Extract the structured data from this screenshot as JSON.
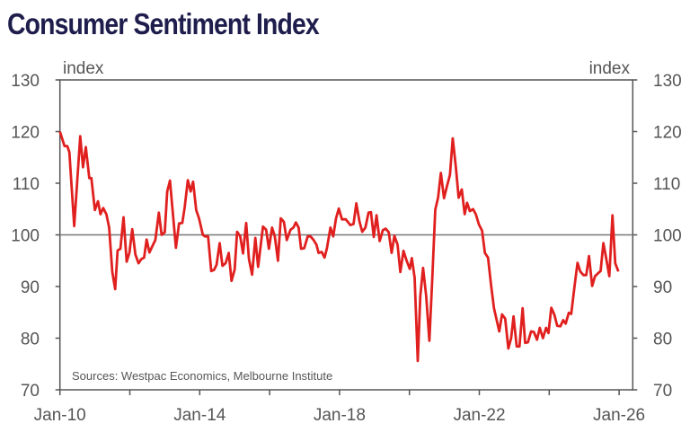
{
  "chart_data": {
    "type": "line",
    "title": "Consumer Sentiment Index",
    "ylabel_left": "index",
    "ylabel_right": "index",
    "source": "Sources: Westpac Economics, Melbourne Institute",
    "ylim": [
      70,
      130
    ],
    "yticks": [
      70,
      80,
      90,
      100,
      110,
      120,
      130
    ],
    "xlim": [
      2010.0,
      2026.42
    ],
    "xticks": [
      2010,
      2012,
      2014,
      2016,
      2018,
      2020,
      2022,
      2024,
      2026
    ],
    "xtick_labels": [
      {
        "x": 2010,
        "label": "Jan-10"
      },
      {
        "x": 2014,
        "label": "Jan-14"
      },
      {
        "x": 2018,
        "label": "Jan-18"
      },
      {
        "x": 2022,
        "label": "Jan-22"
      },
      {
        "x": 2026,
        "label": "Jan-26"
      }
    ],
    "reference_line": 100,
    "grid": false,
    "colors": {
      "series": "#e0201f",
      "title": "#1e1d4c",
      "axis": "#555555"
    },
    "series": [
      {
        "name": "Consumer Sentiment Index",
        "points": [
          [
            2010.0,
            120
          ],
          [
            2010.13,
            117.2
          ],
          [
            2010.21,
            117.2
          ],
          [
            2010.27,
            116.0
          ],
          [
            2010.41,
            101.7
          ],
          [
            2010.58,
            119.1
          ],
          [
            2010.66,
            113.1
          ],
          [
            2010.74,
            117.0
          ],
          [
            2010.84,
            111.0
          ],
          [
            2010.9,
            111.0
          ],
          [
            2011.0,
            104.8
          ],
          [
            2011.09,
            106.5
          ],
          [
            2011.16,
            104.0
          ],
          [
            2011.24,
            105.2
          ],
          [
            2011.33,
            104.0
          ],
          [
            2011.41,
            101.4
          ],
          [
            2011.5,
            92.8
          ],
          [
            2011.58,
            89.5
          ],
          [
            2011.65,
            97.0
          ],
          [
            2011.73,
            97.3
          ],
          [
            2011.82,
            103.4
          ],
          [
            2011.91,
            94.8
          ],
          [
            2011.99,
            96.6
          ],
          [
            2012.07,
            101.1
          ],
          [
            2012.16,
            96.2
          ],
          [
            2012.25,
            94.5
          ],
          [
            2012.33,
            95.3
          ],
          [
            2012.41,
            95.6
          ],
          [
            2012.48,
            99.1
          ],
          [
            2012.56,
            96.6
          ],
          [
            2012.65,
            97.9
          ],
          [
            2012.73,
            99.0
          ],
          [
            2012.83,
            104.3
          ],
          [
            2012.91,
            100.0
          ],
          [
            2013.0,
            100.5
          ],
          [
            2013.07,
            108.4
          ],
          [
            2013.15,
            110.5
          ],
          [
            2013.32,
            97.5
          ],
          [
            2013.41,
            102.2
          ],
          [
            2013.5,
            102.3
          ],
          [
            2013.57,
            105.4
          ],
          [
            2013.66,
            110.6
          ],
          [
            2013.74,
            108.4
          ],
          [
            2013.81,
            110.3
          ],
          [
            2013.9,
            104.8
          ],
          [
            2013.98,
            103.2
          ],
          [
            2014.09,
            100.0
          ],
          [
            2014.15,
            99.7
          ],
          [
            2014.24,
            99.7
          ],
          [
            2014.33,
            93.0
          ],
          [
            2014.41,
            93.2
          ],
          [
            2014.48,
            94.2
          ],
          [
            2014.57,
            98.4
          ],
          [
            2014.65,
            94.0
          ],
          [
            2014.74,
            94.5
          ],
          [
            2014.83,
            96.5
          ],
          [
            2014.91,
            91.1
          ],
          [
            2015.0,
            93.3
          ],
          [
            2015.07,
            100.6
          ],
          [
            2015.16,
            99.7
          ],
          [
            2015.24,
            96.4
          ],
          [
            2015.33,
            102.3
          ],
          [
            2015.41,
            95.3
          ],
          [
            2015.5,
            92.3
          ],
          [
            2015.59,
            99.4
          ],
          [
            2015.67,
            93.8
          ],
          [
            2015.81,
            101.6
          ],
          [
            2015.9,
            101.0
          ],
          [
            2015.98,
            97.3
          ],
          [
            2016.07,
            101.4
          ],
          [
            2016.15,
            99.7
          ],
          [
            2016.24,
            95.0
          ],
          [
            2016.32,
            103.2
          ],
          [
            2016.41,
            102.5
          ],
          [
            2016.49,
            99.0
          ],
          [
            2016.6,
            101.0
          ],
          [
            2016.68,
            101.4
          ],
          [
            2016.75,
            102.4
          ],
          [
            2016.83,
            101.4
          ],
          [
            2016.9,
            97.3
          ],
          [
            2016.99,
            97.4
          ],
          [
            2017.09,
            99.7
          ],
          [
            2017.17,
            99.7
          ],
          [
            2017.26,
            99.0
          ],
          [
            2017.34,
            98.1
          ],
          [
            2017.4,
            96.5
          ],
          [
            2017.49,
            96.7
          ],
          [
            2017.57,
            95.6
          ],
          [
            2017.64,
            97.4
          ],
          [
            2017.74,
            101.4
          ],
          [
            2017.82,
            99.7
          ],
          [
            2017.9,
            103.2
          ],
          [
            2017.98,
            105.1
          ],
          [
            2018.07,
            103.0
          ],
          [
            2018.18,
            103.0
          ],
          [
            2018.31,
            101.9
          ],
          [
            2018.4,
            102.1
          ],
          [
            2018.48,
            106.1
          ],
          [
            2018.57,
            102.6
          ],
          [
            2018.65,
            100.6
          ],
          [
            2018.74,
            101.4
          ],
          [
            2018.83,
            104.3
          ],
          [
            2018.9,
            104.4
          ],
          [
            2018.98,
            99.6
          ],
          [
            2019.06,
            103.8
          ],
          [
            2019.15,
            98.8
          ],
          [
            2019.24,
            100.9
          ],
          [
            2019.32,
            101.2
          ],
          [
            2019.41,
            100.5
          ],
          [
            2019.49,
            96.5
          ],
          [
            2019.57,
            99.8
          ],
          [
            2019.66,
            98.1
          ],
          [
            2019.74,
            92.8
          ],
          [
            2019.83,
            96.9
          ],
          [
            2019.92,
            95.0
          ],
          [
            2020.01,
            93.4
          ],
          [
            2020.07,
            95.5
          ],
          [
            2020.15,
            91.7
          ],
          [
            2020.24,
            75.6
          ],
          [
            2020.31,
            88.1
          ],
          [
            2020.39,
            93.6
          ],
          [
            2020.48,
            88.1
          ],
          [
            2020.57,
            79.5
          ],
          [
            2020.65,
            91.0
          ],
          [
            2020.74,
            104.9
          ],
          [
            2020.82,
            107.2
          ],
          [
            2020.9,
            112.0
          ],
          [
            2020.99,
            107.1
          ],
          [
            2021.07,
            109.3
          ],
          [
            2021.16,
            111.6
          ],
          [
            2021.24,
            118.7
          ],
          [
            2021.33,
            113.1
          ],
          [
            2021.41,
            107.2
          ],
          [
            2021.5,
            108.8
          ],
          [
            2021.58,
            104.0
          ],
          [
            2021.65,
            106.2
          ],
          [
            2021.73,
            104.6
          ],
          [
            2021.82,
            105.0
          ],
          [
            2021.9,
            104.0
          ],
          [
            2021.99,
            102.0
          ],
          [
            2022.08,
            100.8
          ],
          [
            2022.16,
            96.5
          ],
          [
            2022.25,
            95.6
          ],
          [
            2022.34,
            90.1
          ],
          [
            2022.42,
            85.8
          ],
          [
            2022.57,
            81.3
          ],
          [
            2022.65,
            84.6
          ],
          [
            2022.74,
            83.8
          ],
          [
            2022.83,
            78.0
          ],
          [
            2022.91,
            80.0
          ],
          [
            2022.98,
            84.2
          ],
          [
            2023.07,
            78.4
          ],
          [
            2023.15,
            78.4
          ],
          [
            2023.24,
            85.8
          ],
          [
            2023.31,
            79.1
          ],
          [
            2023.39,
            79.2
          ],
          [
            2023.48,
            81.3
          ],
          [
            2023.56,
            81.2
          ],
          [
            2023.65,
            79.7
          ],
          [
            2023.73,
            82.0
          ],
          [
            2023.82,
            80.0
          ],
          [
            2023.91,
            82.0
          ],
          [
            2023.98,
            81.0
          ],
          [
            2024.06,
            85.9
          ],
          [
            2024.15,
            84.5
          ],
          [
            2024.23,
            82.4
          ],
          [
            2024.32,
            82.3
          ],
          [
            2024.4,
            83.5
          ],
          [
            2024.47,
            82.8
          ],
          [
            2024.56,
            84.9
          ],
          [
            2024.63,
            84.7
          ],
          [
            2024.72,
            89.8
          ],
          [
            2024.81,
            94.6
          ],
          [
            2024.89,
            92.9
          ],
          [
            2024.98,
            92.2
          ],
          [
            2025.06,
            92.2
          ],
          [
            2025.14,
            95.9
          ],
          [
            2025.23,
            90.1
          ],
          [
            2025.31,
            92.0
          ],
          [
            2025.4,
            92.6
          ],
          [
            2025.47,
            93.0
          ],
          [
            2025.55,
            98.4
          ],
          [
            2025.64,
            95.1
          ],
          [
            2025.72,
            92.0
          ],
          [
            2025.81,
            103.8
          ],
          [
            2025.89,
            94.5
          ],
          [
            2025.98,
            92.9
          ]
        ]
      }
    ]
  }
}
